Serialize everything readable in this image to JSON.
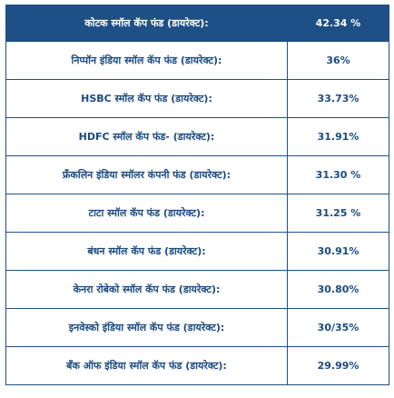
{
  "table": {
    "header": {
      "name": "कोटक स्मॉल कॅप फंड (डायरेक्ट):",
      "value": "42.34 %"
    },
    "rows": [
      {
        "name": "निप्पॉन इंडिया स्मॉल कॅप फंड (डायरेक्ट):",
        "value": "36%"
      },
      {
        "name": "HSBC स्मॉल कॅप फंड (डायरेक्ट):",
        "value": "33.73%"
      },
      {
        "name": "HDFC स्मॉल कॅप फंड- (डायरेक्ट):",
        "value": "31.91%"
      },
      {
        "name": "फ्रँकलिन इंडिया स्मॉलर कंपनी फंड (डायरेक्ट):",
        "value": "31.30 %"
      },
      {
        "name": "टाटा स्मॉल कॅप फंड (डायरेक्ट):",
        "value": "31.25 %"
      },
      {
        "name": "बंधन स्मॉल कॅप फंड (डायरेक्ट):",
        "value": "30.91%"
      },
      {
        "name": "केनरा रोबेको स्मॉल कॅप फंड (डायरेक्ट):",
        "value": "30.80%"
      },
      {
        "name": "इनवेस्को इंडिया स्मॉल कॅप फंड (डायरेक्ट):",
        "value": "30/35%"
      },
      {
        "name": "बँक ऑफ इंडिया स्मॉल कॅप फंड (डायरेक्ट):",
        "value": "29.99%"
      }
    ]
  }
}
